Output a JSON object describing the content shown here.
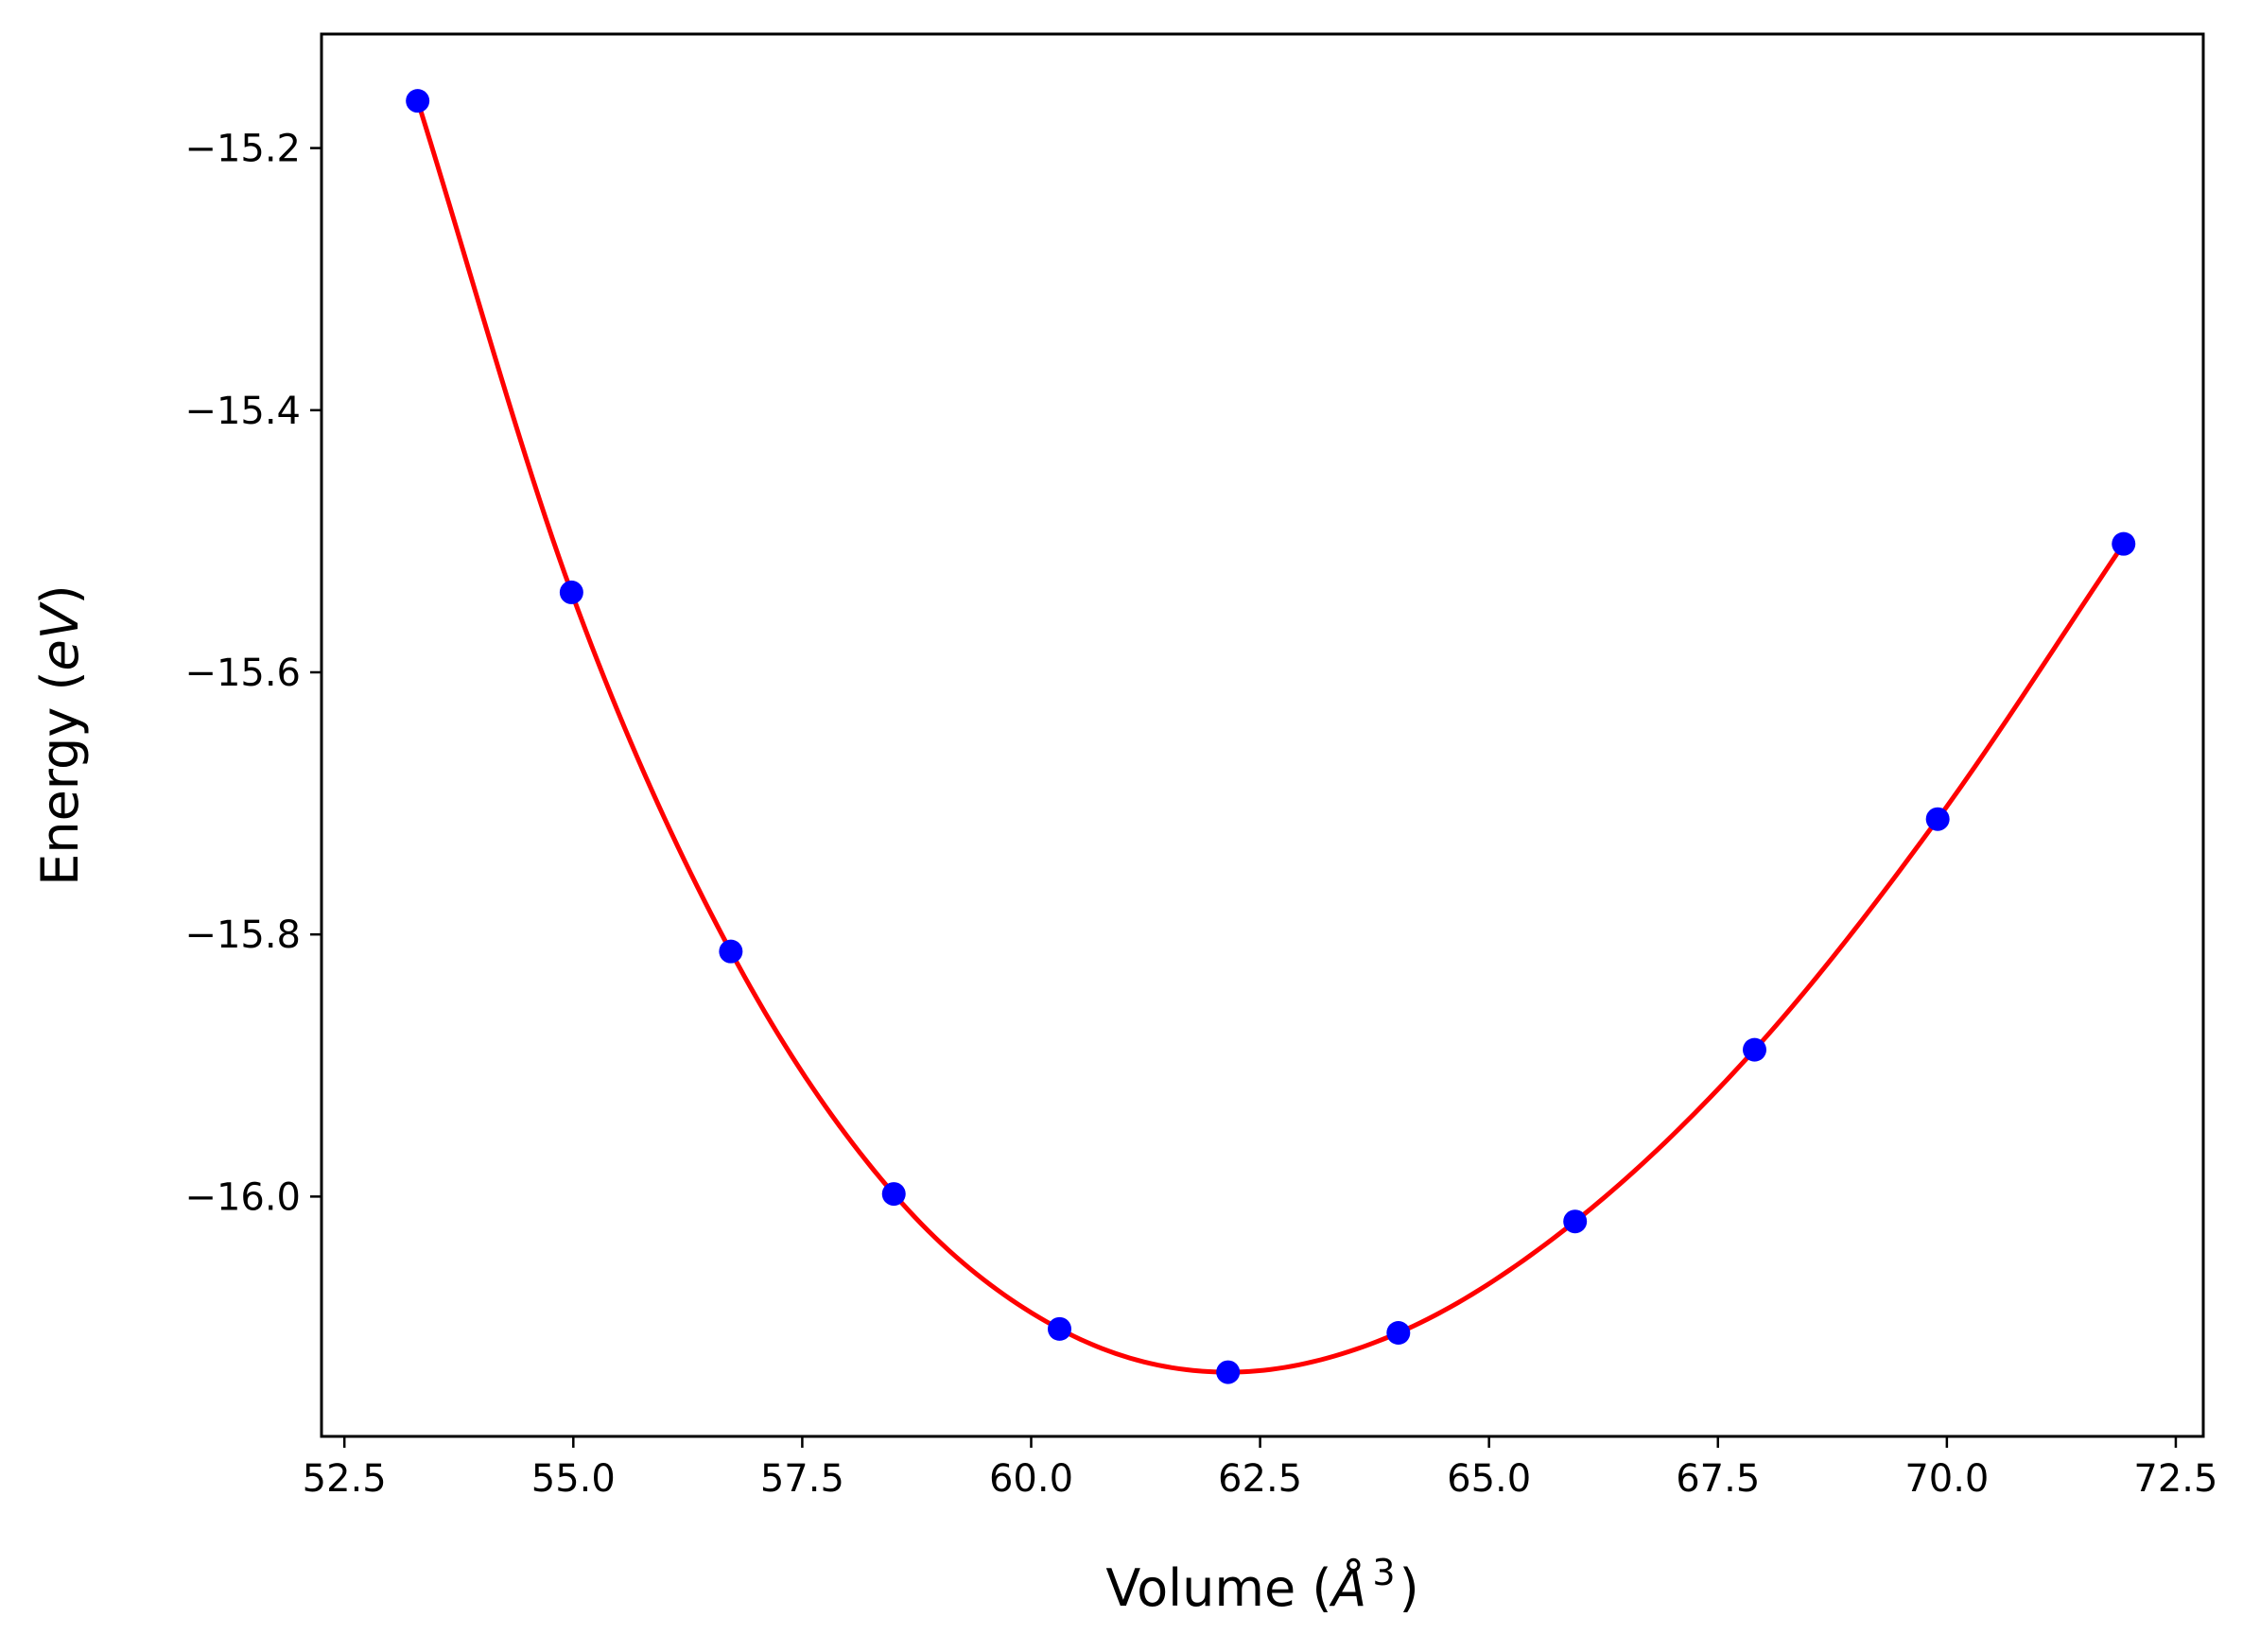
{
  "chart_data": {
    "type": "scatter",
    "xlabel": {
      "prefix": "Volume (",
      "unit": "Å",
      "exponent": "3",
      "suffix": ")"
    },
    "ylabel": {
      "prefix": "Energy (",
      "unit": "eV",
      "suffix": ")"
    },
    "xlim": [
      52.25,
      72.8
    ],
    "ylim": [
      -16.183,
      -15.113
    ],
    "xticks": [
      52.5,
      55.0,
      57.5,
      60.0,
      62.5,
      65.0,
      67.5,
      70.0,
      72.5
    ],
    "xtick_labels": [
      "52.5",
      "55.0",
      "57.5",
      "60.0",
      "62.5",
      "65.0",
      "67.5",
      "70.0",
      "72.5"
    ],
    "yticks": [
      -15.2,
      -15.4,
      -15.6,
      -15.8,
      -16.0
    ],
    "ytick_labels": [
      "−15.2",
      "−15.4",
      "−15.6",
      "−15.8",
      "−16.0"
    ],
    "grid": false,
    "series": [
      {
        "kind": "points",
        "color": "#0000ff",
        "x": [
          53.3,
          54.98,
          56.72,
          58.5,
          60.31,
          62.15,
          64.01,
          65.94,
          67.9,
          69.9,
          71.93
        ],
        "y": [
          -15.164,
          -15.539,
          -15.813,
          -15.998,
          -16.101,
          -16.134,
          -16.104,
          -16.019,
          -15.888,
          -15.712,
          -15.502
        ]
      },
      {
        "kind": "fit-curve",
        "color": "#ff0000",
        "x": [
          53.3,
          54.98,
          56.72,
          58.5,
          60.31,
          62.15,
          64.01,
          65.94,
          67.9,
          69.9,
          71.93
        ],
        "y": [
          -15.164,
          -15.539,
          -15.813,
          -15.998,
          -16.101,
          -16.134,
          -16.104,
          -16.019,
          -15.888,
          -15.712,
          -15.502
        ]
      }
    ]
  }
}
